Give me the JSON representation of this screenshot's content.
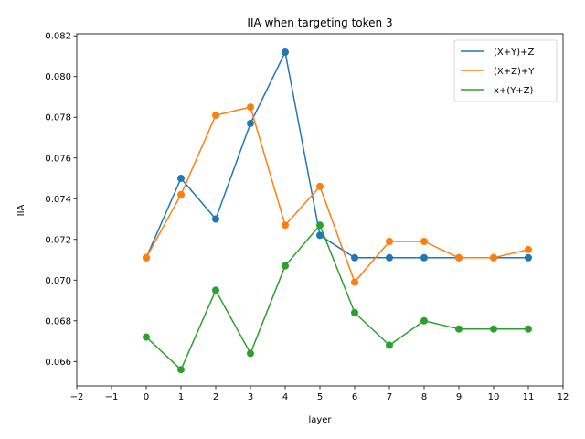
{
  "chart_data": {
    "type": "line",
    "title": "IIA when targeting token 3",
    "xlabel": "layer",
    "ylabel": "IIA",
    "xlim": [
      -2,
      12
    ],
    "ylim": [
      0.0648,
      0.0821
    ],
    "xticks": [
      -2,
      -1,
      0,
      1,
      2,
      3,
      4,
      5,
      6,
      7,
      8,
      9,
      10,
      11,
      12
    ],
    "xtick_labels": [
      "−2",
      "−1",
      "0",
      "1",
      "2",
      "3",
      "4",
      "5",
      "6",
      "7",
      "8",
      "9",
      "10",
      "11",
      "12"
    ],
    "yticks": [
      0.066,
      0.068,
      0.07,
      0.072,
      0.074,
      0.076,
      0.078,
      0.08,
      0.082
    ],
    "ytick_labels": [
      "0.066",
      "0.068",
      "0.070",
      "0.072",
      "0.074",
      "0.076",
      "0.078",
      "0.080",
      "0.082"
    ],
    "grid": false,
    "legend_position": "top-right",
    "x": [
      0,
      1,
      2,
      3,
      4,
      5,
      6,
      7,
      8,
      9,
      10,
      11
    ],
    "series": [
      {
        "name": "(X+Y)+Z",
        "color": "#1f77b4",
        "values": [
          0.0711,
          0.075,
          0.073,
          0.0777,
          0.0812,
          0.0722,
          0.0711,
          0.0711,
          0.0711,
          0.0711,
          0.0711,
          0.0711
        ]
      },
      {
        "name": "(X+Z)+Y",
        "color": "#ff7f0e",
        "values": [
          0.0711,
          0.0742,
          0.0781,
          0.0785,
          0.0727,
          0.0746,
          0.0699,
          0.0719,
          0.0719,
          0.0711,
          0.0711,
          0.0715
        ]
      },
      {
        "name": "x+(Y+Z)",
        "color": "#2ca02c",
        "values": [
          0.0672,
          0.0656,
          0.0695,
          0.0664,
          0.0707,
          0.0727,
          0.0684,
          0.0668,
          0.068,
          0.0676,
          0.0676,
          0.0676
        ]
      }
    ]
  }
}
